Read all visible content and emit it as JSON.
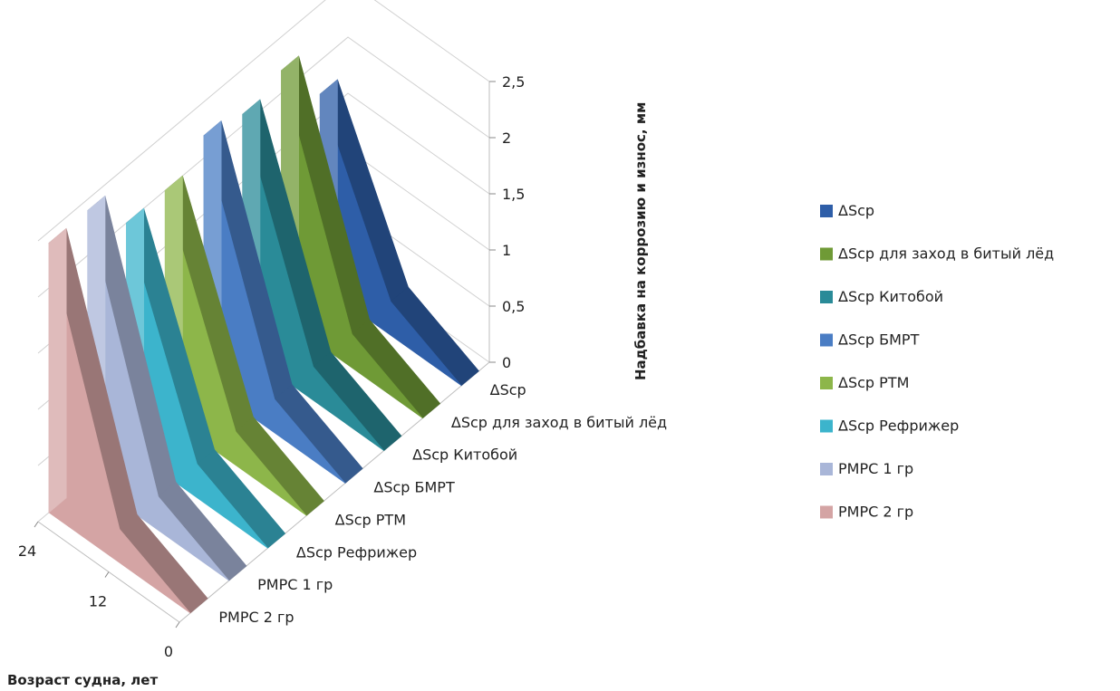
{
  "chart_data": {
    "type": "area",
    "view": "3d",
    "xlabel": "Возраст судна, лет",
    "ylabel": "Надбавка  на  коррозию и износ, мм",
    "x": [
      0,
      12,
      24
    ],
    "ylim": [
      0,
      2.5
    ],
    "yticks": [
      "0",
      "0,5",
      "1",
      "1,5",
      "2",
      "2,5"
    ],
    "xticks": [
      "0",
      "12",
      "24"
    ],
    "grid": true,
    "legend_position": "right",
    "series": [
      {
        "name": "РМРС 2 гр",
        "color": "#d4a4a4",
        "values": [
          0,
          0.3,
          2.4
        ]
      },
      {
        "name": "РМРС 1 гр",
        "color": "#a9b6d8",
        "values": [
          0,
          0.3,
          2.4
        ]
      },
      {
        "name": "ΔScp Рефрижер",
        "color": "#3cb4cc",
        "values": [
          0,
          0.3,
          2.0
        ]
      },
      {
        "name": "ΔScp РТМ",
        "color": "#8db64a",
        "values": [
          0,
          0.3,
          2.0
        ]
      },
      {
        "name": "ΔScp БМРТ",
        "color": "#4a7dc4",
        "values": [
          0,
          0.3,
          2.2
        ]
      },
      {
        "name": "ΔScp Китобой",
        "color": "#2a8b98",
        "values": [
          0,
          0.3,
          2.1
        ]
      },
      {
        "name": "ΔScp для заход в битый лёд",
        "color": "#6f9a36",
        "values": [
          0,
          0.3,
          2.2
        ]
      },
      {
        "name": "ΔScp",
        "color": "#2e5ea8",
        "values": [
          0,
          0.3,
          1.7
        ]
      }
    ]
  }
}
